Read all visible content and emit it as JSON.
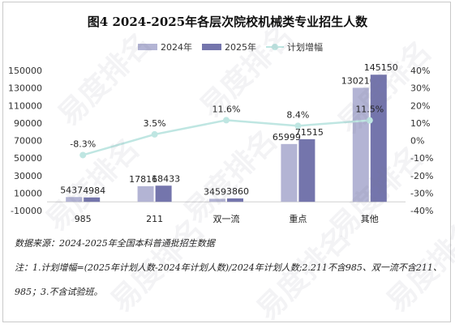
{
  "chart_data": {
    "type": "bar",
    "title": "图4  2024-2025年各层次院校机械类专业招生人数",
    "categories": [
      "985",
      "211",
      "双一流",
      "重点",
      "其他"
    ],
    "series": [
      {
        "name": "2024年",
        "type": "bar",
        "axis": "left",
        "color": "#b3b4d4",
        "values": [
          5437,
          17816,
          3459,
          65999,
          130210
        ]
      },
      {
        "name": "2025年",
        "type": "bar",
        "axis": "left",
        "color": "#7475ac",
        "values": [
          4984,
          18433,
          3860,
          71515,
          145150
        ]
      },
      {
        "name": "计划增幅",
        "type": "line",
        "axis": "right",
        "color": "#bfe6e2",
        "values": [
          -8.3,
          3.5,
          11.6,
          8.4,
          11.5
        ],
        "labels": [
          "-8.3%",
          "3.5%",
          "11.6%",
          "8.4%",
          "11.5%"
        ]
      }
    ],
    "y_left": {
      "min": -10000,
      "max": 150000,
      "step": 20000,
      "ticks": [
        "-10000",
        "10000",
        "30000",
        "50000",
        "70000",
        "90000",
        "110000",
        "130000",
        "150000"
      ]
    },
    "y_right": {
      "min": -40,
      "max": 40,
      "step": 10,
      "ticks": [
        "-40%",
        "-30%",
        "-20%",
        "-10%",
        "0%",
        "10%",
        "20%",
        "30%",
        "40%"
      ]
    },
    "legend_position": "top",
    "grid": false
  },
  "watermark": "易度排名 EDU Ranking.cn",
  "notes": {
    "source": "数据来源：2024-2025年全国本科普通批招生数据",
    "note_line1": "注：1.计划增幅=(2025年计划人数-2024年计划人数)/2024年计划人数;2.211不含985、双一流不含211、",
    "note_line2": "985；3.不含试验班。"
  }
}
